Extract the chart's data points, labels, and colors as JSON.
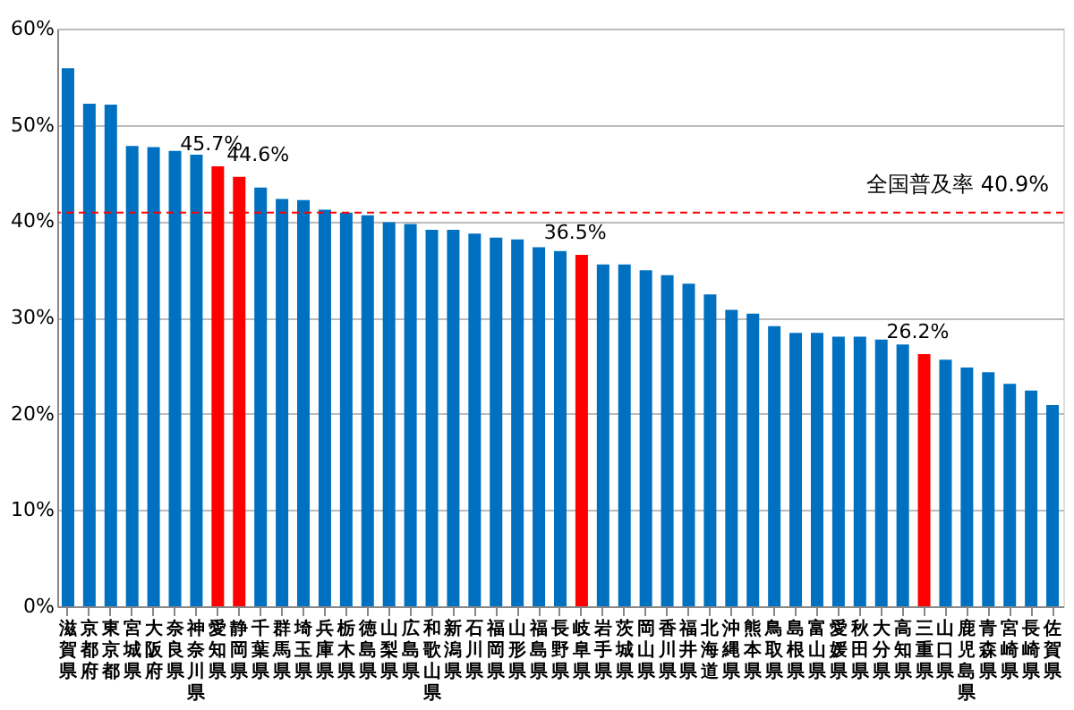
{
  "chart_data": {
    "type": "bar",
    "categories": [
      "滋賀県",
      "京都府",
      "東京都",
      "宮城県",
      "大阪府",
      "奈良県",
      "神奈川県",
      "愛知県",
      "静岡県",
      "千葉県",
      "群馬県",
      "埼玉県",
      "兵庫県",
      "栃木県",
      "徳島県",
      "山梨県",
      "広島県",
      "和歌山県",
      "新潟県",
      "石川県",
      "福岡県",
      "山形県",
      "福島県",
      "長野県",
      "岐阜県",
      "岩手県",
      "茨城県",
      "岡山県",
      "香川県",
      "福井県",
      "北海道",
      "沖縄県",
      "熊本県",
      "鳥取県",
      "島根県",
      "富山県",
      "愛媛県",
      "秋田県",
      "大分県",
      "高知県",
      "三重県",
      "山口県",
      "鹿児島県",
      "青森県",
      "宮崎県",
      "長崎県",
      "佐賀県"
    ],
    "values": [
      55.9,
      52.2,
      52.1,
      47.8,
      47.7,
      47.3,
      46.9,
      45.7,
      44.6,
      43.5,
      42.3,
      42.2,
      41.2,
      40.9,
      40.6,
      39.9,
      39.7,
      39.1,
      39.1,
      38.7,
      38.3,
      38.1,
      37.3,
      36.9,
      36.5,
      35.5,
      35.5,
      34.9,
      34.4,
      33.5,
      32.4,
      30.8,
      30.4,
      29.1,
      28.4,
      28.4,
      28.0,
      28.0,
      27.7,
      27.2,
      26.2,
      25.6,
      24.8,
      24.3,
      23.1,
      22.4,
      20.9
    ],
    "colors": [
      "#0070c0",
      "#0070c0",
      "#0070c0",
      "#0070c0",
      "#0070c0",
      "#0070c0",
      "#0070c0",
      "#ff0000",
      "#ff0000",
      "#0070c0",
      "#0070c0",
      "#0070c0",
      "#0070c0",
      "#0070c0",
      "#0070c0",
      "#0070c0",
      "#0070c0",
      "#0070c0",
      "#0070c0",
      "#0070c0",
      "#0070c0",
      "#0070c0",
      "#0070c0",
      "#0070c0",
      "#ff0000",
      "#0070c0",
      "#0070c0",
      "#0070c0",
      "#0070c0",
      "#0070c0",
      "#0070c0",
      "#0070c0",
      "#0070c0",
      "#0070c0",
      "#0070c0",
      "#0070c0",
      "#0070c0",
      "#0070c0",
      "#0070c0",
      "#0070c0",
      "#ff0000",
      "#0070c0",
      "#0070c0",
      "#0070c0",
      "#0070c0",
      "#0070c0",
      "#0070c0"
    ],
    "value_labels": [
      null,
      null,
      null,
      null,
      null,
      null,
      null,
      "45.7%",
      "44.6%",
      null,
      null,
      null,
      null,
      null,
      null,
      null,
      null,
      null,
      null,
      null,
      null,
      null,
      null,
      null,
      "36.5%",
      null,
      null,
      null,
      null,
      null,
      null,
      null,
      null,
      null,
      null,
      null,
      null,
      null,
      null,
      null,
      "26.2%",
      null,
      null,
      null,
      null,
      null,
      null
    ],
    "ylim": [
      0,
      60
    ],
    "yticks": [
      {
        "value": 0,
        "label": "0%"
      },
      {
        "value": 10,
        "label": "10%"
      },
      {
        "value": 20,
        "label": "20%"
      },
      {
        "value": 30,
        "label": "30%"
      },
      {
        "value": 40,
        "label": "40%"
      },
      {
        "value": 50,
        "label": "50%"
      },
      {
        "value": 60,
        "label": "60%"
      }
    ],
    "ref_lines": [
      {
        "axis": "y",
        "value": 40.9,
        "label": "全国普及率 40.9%",
        "color": "#ff0000",
        "line_style": "dashed"
      }
    ],
    "grid": "y"
  }
}
